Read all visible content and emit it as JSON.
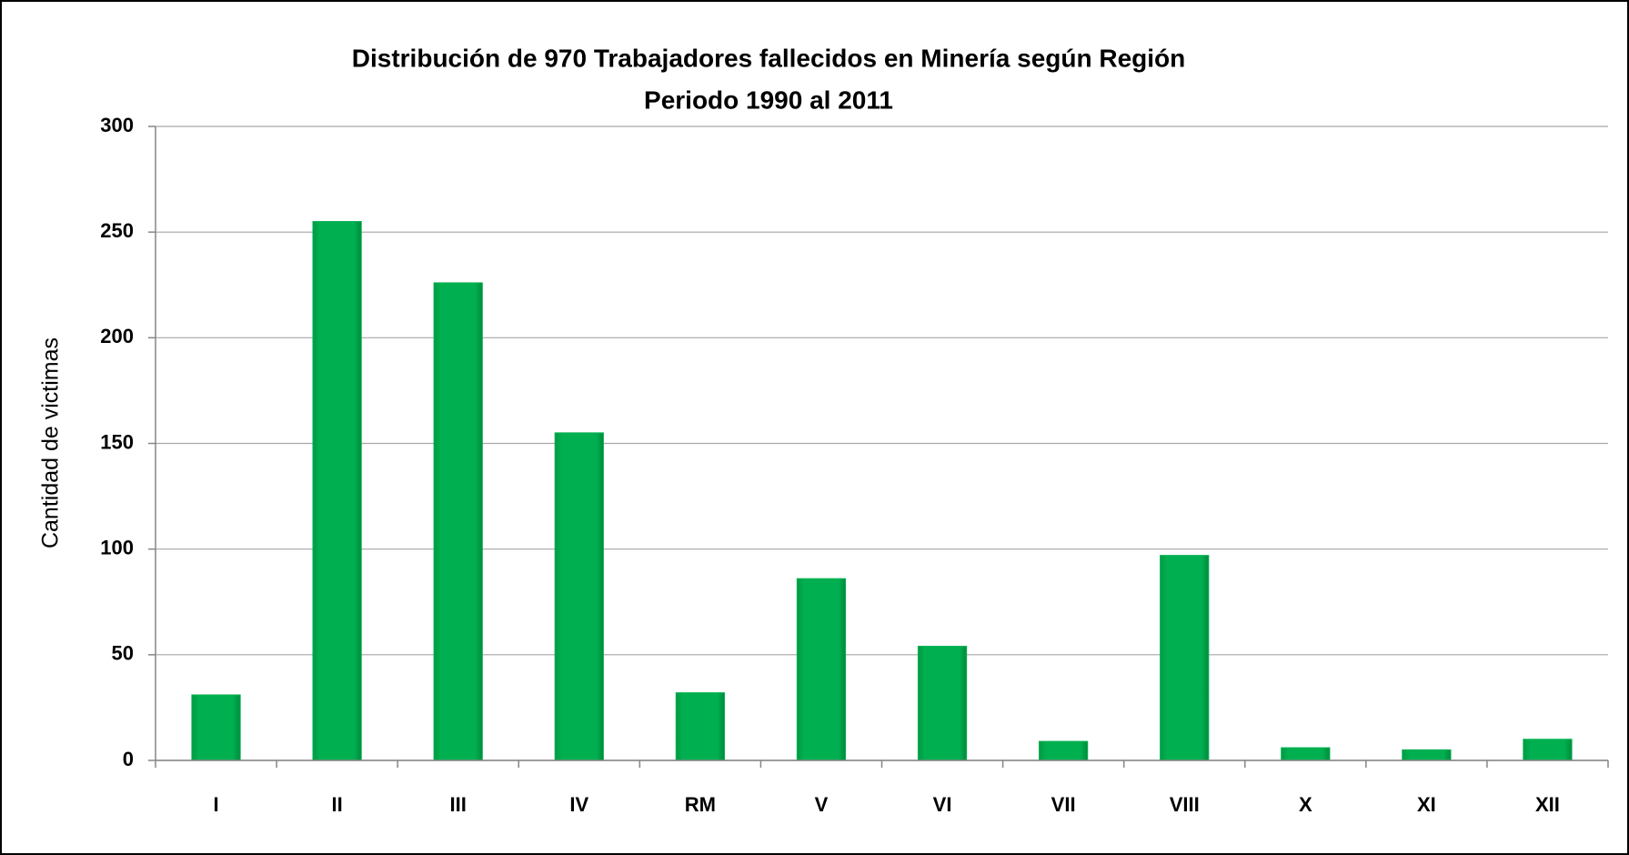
{
  "chart_data": {
    "type": "bar",
    "title": "Distribución de 970 Trabajadores fallecidos en Minería según Región",
    "subtitle": "Periodo 1990 al 2011",
    "y_label": "Cantidad de victimas",
    "categories": [
      "I",
      "II",
      "III",
      "IV",
      "RM",
      "V",
      "VI",
      "VII",
      "VIII",
      "X",
      "XI",
      "XII"
    ],
    "values": [
      31,
      255,
      226,
      155,
      32,
      86,
      54,
      9,
      97,
      6,
      5,
      10
    ],
    "color": "#00b050",
    "ylim": [
      0,
      300
    ],
    "yticks": [
      0,
      50,
      100,
      150,
      200,
      250,
      300
    ],
    "grid": true
  }
}
